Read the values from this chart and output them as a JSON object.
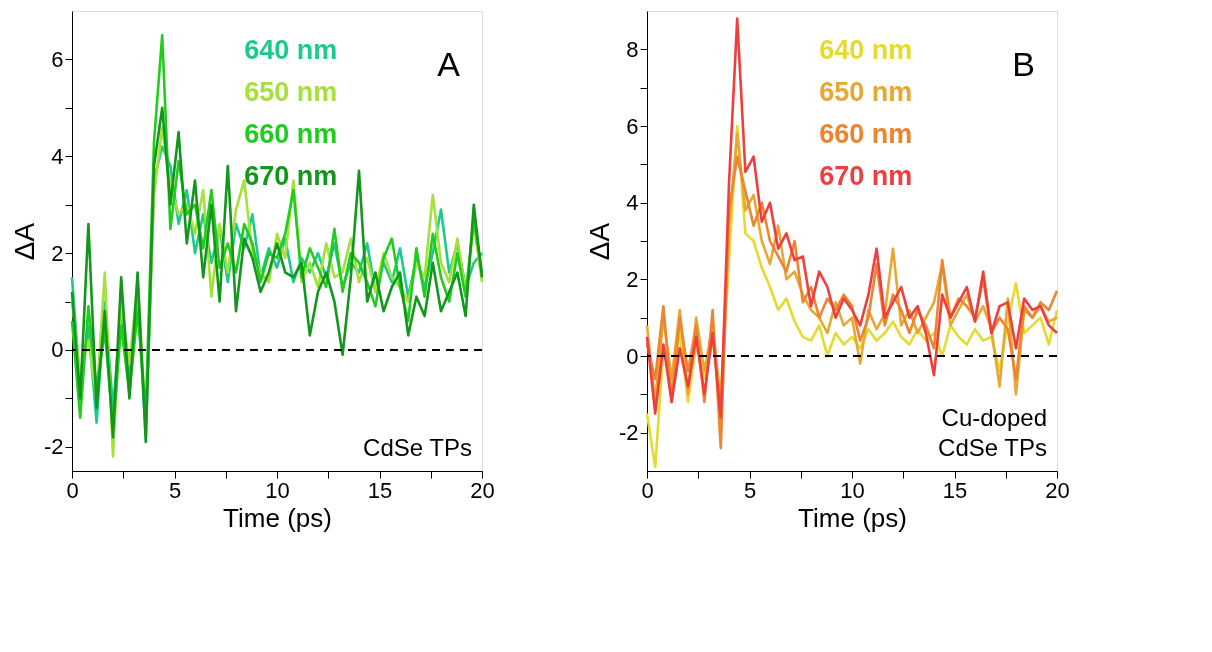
{
  "chart_data": [
    {
      "type": "line",
      "ylabel": "ΔA",
      "xlabel": "Time (ps)",
      "legend": "top",
      "grid": false,
      "line_style": "solid",
      "marker": "none",
      "annotations": [
        "A",
        "CdSe TPs"
      ],
      "xlim": [
        0,
        20
      ],
      "xticks": [
        0,
        {
          "value": 2.5,
          "label": null
        },
        5,
        {
          "value": 7.5,
          "label": null
        },
        10,
        {
          "value": 12.5,
          "label": null
        },
        15,
        {
          "value": 17.5,
          "label": null
        },
        20
      ],
      "ylim": [
        -2.5,
        7
      ],
      "yticks": [
        -2,
        {
          "value": -1,
          "label": null
        },
        0,
        {
          "value": 1,
          "label": null
        },
        2,
        {
          "value": 3,
          "label": null
        },
        4,
        {
          "value": 5,
          "label": null
        },
        6
      ],
      "ref_lines": [
        {
          "axis": "y",
          "value": 0,
          "label": null,
          "color": "#000000",
          "line_style": "dashed"
        }
      ],
      "x": [
        0,
        0.4,
        0.8,
        1.2,
        1.6,
        2.0,
        2.4,
        2.8,
        3.2,
        3.6,
        4.0,
        4.4,
        4.8,
        5.2,
        5.6,
        6.0,
        6.4,
        6.8,
        7.2,
        7.6,
        8.0,
        8.4,
        8.8,
        9.2,
        9.6,
        10.0,
        10.4,
        10.8,
        11.2,
        11.6,
        12.0,
        12.4,
        12.8,
        13.2,
        13.6,
        14.0,
        14.4,
        14.8,
        15.2,
        15.6,
        16.0,
        16.4,
        16.8,
        17.2,
        17.6,
        18.0,
        18.4,
        18.8,
        19.2,
        19.6,
        20.0
      ],
      "series": [
        {
          "name": "640 nm",
          "color": "#1ec98e",
          "values": [
            1.5,
            -0.8,
            0.5,
            -1.5,
            1.0,
            -1.2,
            0.8,
            -0.6,
            1.2,
            -1.8,
            3.5,
            4.2,
            3.8,
            2.6,
            3.3,
            2.0,
            2.8,
            1.8,
            2.5,
            1.4,
            2.6,
            2.1,
            2.8,
            1.5,
            2.1,
            1.7,
            2.3,
            1.4,
            1.9,
            1.6,
            2.0,
            1.5,
            2.2,
            1.3,
            1.8,
            1.6,
            2.2,
            1.2,
            1.8,
            1.4,
            2.1,
            1.1,
            1.9,
            1.3,
            2.0,
            2.9,
            1.6,
            2.2,
            1.3,
            1.8,
            2.0
          ]
        },
        {
          "name": "650 nm",
          "color": "#a6e03a",
          "values": [
            1.0,
            -0.5,
            0.2,
            -1.0,
            1.6,
            -2.2,
            1.0,
            -0.3,
            1.4,
            -1.5,
            3.2,
            4.6,
            3.4,
            2.8,
            3.0,
            2.4,
            3.3,
            1.1,
            2.6,
            1.6,
            2.9,
            3.5,
            2.0,
            1.6,
            1.4,
            2.4,
            1.9,
            3.5,
            1.4,
            1.8,
            1.3,
            2.2,
            1.5,
            1.6,
            2.3,
            1.4,
            1.9,
            1.2,
            2.0,
            1.5,
            1.3,
            1.0,
            1.8,
            1.5,
            3.2,
            1.8,
            1.4,
            2.3,
            1.2,
            2.6,
            1.4
          ]
        },
        {
          "name": "660 nm",
          "color": "#22cc1e",
          "values": [
            0.6,
            -1.4,
            0.9,
            -0.8,
            0.4,
            -1.6,
            0.5,
            -0.9,
            0.8,
            -1.3,
            4.3,
            6.5,
            2.5,
            3.9,
            2.8,
            3.0,
            2.1,
            3.3,
            1.7,
            2.2,
            1.6,
            2.6,
            2.2,
            1.4,
            2.0,
            1.9,
            2.4,
            3.3,
            1.5,
            2.1,
            1.7,
            1.3,
            2.5,
            1.2,
            2.0,
            1.8,
            1.4,
            0.9,
            1.9,
            2.3,
            1.3,
            0.6,
            2.1,
            1.1,
            2.4,
            1.5,
            1.0,
            2.0,
            1.1,
            2.7,
            1.6
          ]
        },
        {
          "name": "670 nm",
          "color": "#13961c",
          "values": [
            1.2,
            -1.0,
            2.6,
            -1.2,
            0.8,
            -1.8,
            1.5,
            -1.0,
            1.6,
            -1.9,
            3.8,
            5.0,
            3.0,
            4.5,
            2.2,
            3.5,
            1.5,
            3.0,
            1.0,
            3.8,
            0.8,
            2.3,
            1.9,
            1.2,
            1.6,
            2.2,
            1.6,
            1.5,
            1.8,
            0.3,
            1.2,
            1.6,
            1.0,
            -0.1,
            1.5,
            3.7,
            1.0,
            1.6,
            0.8,
            1.3,
            1.6,
            0.3,
            1.1,
            0.7,
            1.8,
            0.8,
            1.2,
            1.6,
            0.7,
            3.0,
            1.5
          ]
        }
      ]
    },
    {
      "type": "line",
      "ylabel": "ΔA",
      "xlabel": "Time (ps)",
      "legend": "top",
      "grid": false,
      "line_style": "solid",
      "marker": "none",
      "annotations": [
        "B",
        "Cu-doped\nCdSe TPs"
      ],
      "xlim": [
        0,
        20
      ],
      "xticks": [
        0,
        {
          "value": 2.5,
          "label": null
        },
        5,
        {
          "value": 7.5,
          "label": null
        },
        10,
        {
          "value": 12.5,
          "label": null
        },
        15,
        {
          "value": 17.5,
          "label": null
        },
        20
      ],
      "ylim": [
        -3,
        9
      ],
      "yticks": [
        -2,
        {
          "value": -1,
          "label": null
        },
        0,
        {
          "value": 1,
          "label": null
        },
        2,
        {
          "value": 3,
          "label": null
        },
        4,
        {
          "value": 5,
          "label": null
        },
        6,
        {
          "value": 7,
          "label": null
        },
        8
      ],
      "ref_lines": [
        {
          "axis": "y",
          "value": 0,
          "label": null,
          "color": "#000000",
          "line_style": "dashed"
        }
      ],
      "x": [
        0,
        0.4,
        0.8,
        1.2,
        1.6,
        2.0,
        2.4,
        2.8,
        3.2,
        3.6,
        4.0,
        4.4,
        4.8,
        5.2,
        5.6,
        6.0,
        6.4,
        6.8,
        7.2,
        7.6,
        8.0,
        8.4,
        8.8,
        9.2,
        9.6,
        10.0,
        10.4,
        10.8,
        11.2,
        11.6,
        12.0,
        12.4,
        12.8,
        13.2,
        13.6,
        14.0,
        14.4,
        14.8,
        15.2,
        15.6,
        16.0,
        16.4,
        16.8,
        17.2,
        17.6,
        18.0,
        18.4,
        18.8,
        19.2,
        19.6,
        20.0
      ],
      "series": [
        {
          "name": "640 nm",
          "color": "#e6da2e",
          "values": [
            -1.5,
            -2.9,
            0.2,
            -0.8,
            0.6,
            -1.2,
            0.3,
            -0.6,
            0.4,
            -1.0,
            2.5,
            6.0,
            3.2,
            3.0,
            2.3,
            1.8,
            1.2,
            1.5,
            0.9,
            0.5,
            0.4,
            0.8,
            0.0,
            0.6,
            0.3,
            0.5,
            0.2,
            0.7,
            0.4,
            0.6,
            0.9,
            0.5,
            0.3,
            0.7,
            0.4,
            0.6,
            0.0,
            0.8,
            0.5,
            0.3,
            0.7,
            0.4,
            0.5,
            -0.4,
            0.9,
            1.9,
            0.6,
            0.8,
            1.0,
            0.3,
            1.2
          ]
        },
        {
          "name": "650 nm",
          "color": "#e6a832",
          "values": [
            0.8,
            -1.2,
            1.0,
            -0.6,
            1.2,
            -1.0,
            1.0,
            -0.4,
            0.8,
            -1.2,
            3.4,
            5.8,
            3.8,
            4.2,
            3.0,
            2.4,
            3.4,
            2.0,
            2.2,
            1.6,
            1.2,
            1.0,
            0.6,
            1.4,
            0.8,
            1.0,
            -0.2,
            1.2,
            0.7,
            1.1,
            2.8,
            0.8,
            1.2,
            0.6,
            1.0,
            1.4,
            2.4,
            0.8,
            1.2,
            1.6,
            0.9,
            1.3,
            0.7,
            -0.8,
            1.5,
            -1.0,
            1.2,
            1.0,
            1.3,
            0.9,
            1.0
          ]
        },
        {
          "name": "660 nm",
          "color": "#ec8530",
          "values": [
            0.3,
            -0.6,
            1.3,
            -1.2,
            1.0,
            -0.4,
            0.8,
            -1.2,
            1.2,
            -2.4,
            3.8,
            5.2,
            4.3,
            3.4,
            4.0,
            3.0,
            2.6,
            2.2,
            3.0,
            1.4,
            1.8,
            1.0,
            1.5,
            1.2,
            1.6,
            1.3,
            0.4,
            1.0,
            2.4,
            0.8,
            1.6,
            1.2,
            0.6,
            1.2,
            0.8,
            0.2,
            2.5,
            1.0,
            1.5,
            1.3,
            1.0,
            2.0,
            0.6,
            1.0,
            0.7,
            -0.6,
            1.3,
            1.0,
            1.4,
            1.2,
            1.7
          ]
        },
        {
          "name": "670 nm",
          "color": "#ef3e3e",
          "values": [
            0.5,
            -1.5,
            0.3,
            -1.2,
            0.2,
            -0.8,
            0.5,
            -1.0,
            0.6,
            -1.6,
            4.5,
            8.8,
            4.8,
            5.2,
            3.5,
            4.0,
            2.8,
            3.2,
            2.5,
            2.6,
            1.3,
            2.2,
            1.8,
            1.0,
            1.5,
            1.2,
            0.8,
            1.6,
            2.8,
            1.0,
            1.4,
            1.8,
            1.0,
            1.3,
            0.6,
            -0.5,
            1.6,
            1.0,
            1.4,
            1.8,
            0.9,
            2.2,
            0.6,
            1.3,
            1.4,
            0.2,
            1.5,
            1.2,
            1.3,
            0.8,
            0.6
          ]
        }
      ]
    }
  ]
}
